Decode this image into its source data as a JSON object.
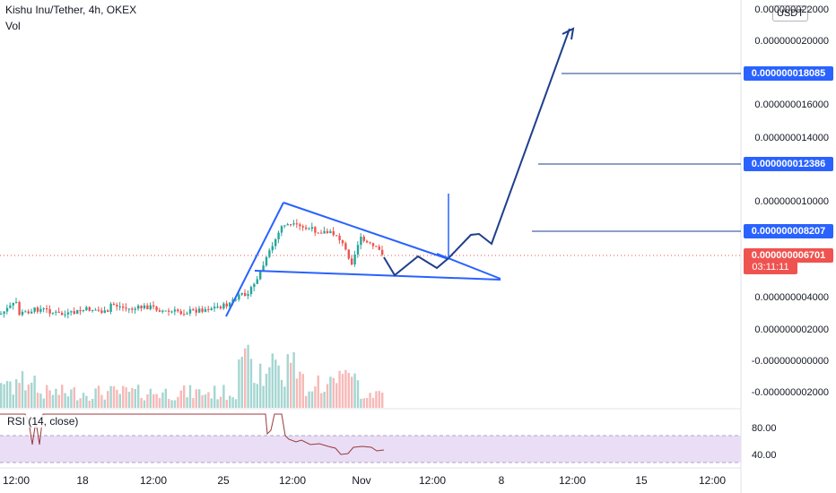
{
  "legend": {
    "title": "Kishu Inu/Tether, 4h, OKEX",
    "vol": "Vol",
    "rsi": "RSI (14, close)"
  },
  "currency_button": "USDT",
  "price_axis": [
    "0.000000022000",
    "0.000000020000",
    "0.000000016000",
    "0.000000014000",
    "0.000000010000",
    "0.000000004000",
    "0.000000002000",
    "-0.000000000000",
    "-0.000000002000"
  ],
  "price_tags": {
    "target1": "0.000000018085",
    "target2": "0.000000012386",
    "target3": "0.000000008207",
    "current": "0.000000006701",
    "countdown": "03:11:11"
  },
  "rsi_axis": [
    "80.00",
    "40.00"
  ],
  "time_axis": [
    "12:00",
    "18",
    "12:00",
    "25",
    "12:00",
    "Nov",
    "12:00",
    "8",
    "12:00",
    "15",
    "12:00"
  ],
  "colors": {
    "up": "#26a69a",
    "down": "#ef5350",
    "drawing": "#2962ff",
    "projection": "#1e3f8c",
    "rsi_line": "#9c3a3a",
    "rsi_band": "#e1d5f0"
  }
}
